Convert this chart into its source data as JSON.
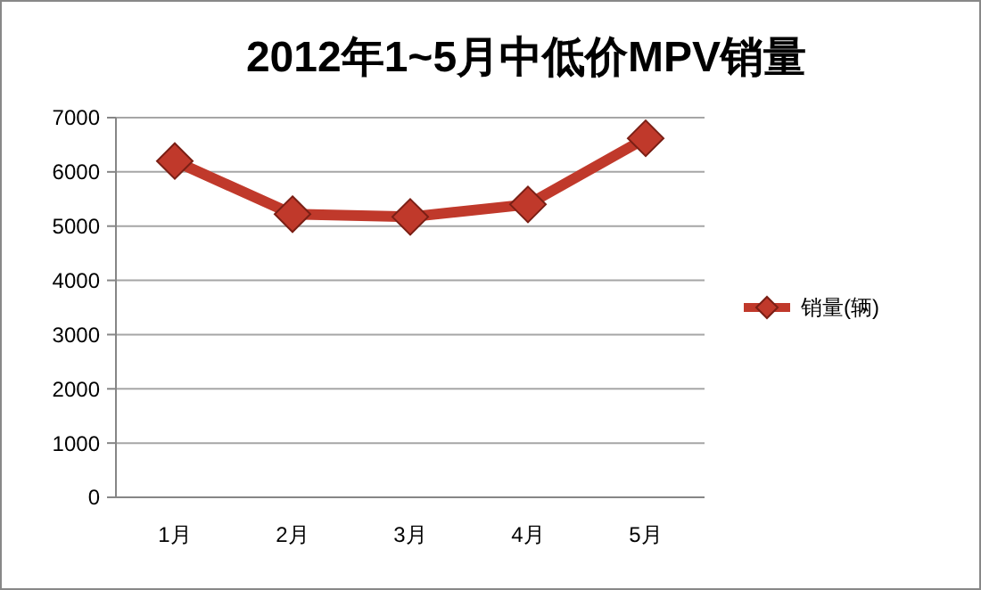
{
  "chart_data": {
    "type": "line",
    "title": "2012年1~5月中低价MPV销量",
    "categories": [
      "1月",
      "2月",
      "3月",
      "4月",
      "5月"
    ],
    "series": [
      {
        "name": "销量(辆)",
        "color": "#c0392b",
        "values": [
          6200,
          5220,
          5170,
          5400,
          6620
        ]
      }
    ],
    "ylim": [
      0,
      7000
    ],
    "yticks": [
      0,
      1000,
      2000,
      3000,
      4000,
      5000,
      6000,
      7000
    ],
    "grid": "y",
    "legend": "right",
    "marker": "diamond",
    "line_style": "solid"
  }
}
